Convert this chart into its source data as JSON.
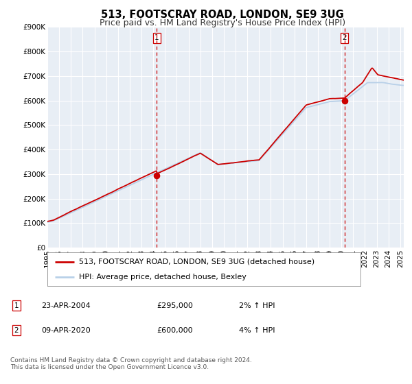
{
  "title": "513, FOOTSCRAY ROAD, LONDON, SE9 3UG",
  "subtitle": "Price paid vs. HM Land Registry's House Price Index (HPI)",
  "ylim": [
    0,
    900000
  ],
  "xlim_start": 1995.0,
  "xlim_end": 2025.3,
  "yticks": [
    0,
    100000,
    200000,
    300000,
    400000,
    500000,
    600000,
    700000,
    800000,
    900000
  ],
  "ytick_labels": [
    "£0",
    "£100K",
    "£200K",
    "£300K",
    "£400K",
    "£500K",
    "£600K",
    "£700K",
    "£800K",
    "£900K"
  ],
  "xticks": [
    1995,
    1996,
    1997,
    1998,
    1999,
    2000,
    2001,
    2002,
    2003,
    2004,
    2005,
    2006,
    2007,
    2008,
    2009,
    2010,
    2011,
    2012,
    2013,
    2014,
    2015,
    2016,
    2017,
    2018,
    2019,
    2020,
    2021,
    2022,
    2023,
    2024,
    2025
  ],
  "hpi_color": "#b8d0e8",
  "price_color": "#cc0000",
  "vline_color": "#cc0000",
  "dot_color": "#cc0000",
  "background_color": "#ffffff",
  "chart_bg_color": "#e8eef5",
  "grid_color": "#ffffff",
  "sale1_x": 2004.31,
  "sale1_y": 295000,
  "sale2_x": 2020.27,
  "sale2_y": 600000,
  "legend_label1": "513, FOOTSCRAY ROAD, LONDON, SE9 3UG (detached house)",
  "legend_label2": "HPI: Average price, detached house, Bexley",
  "annot1_label": "1",
  "annot2_label": "2",
  "table_row1": [
    "1",
    "23-APR-2004",
    "£295,000",
    "2% ↑ HPI"
  ],
  "table_row2": [
    "2",
    "09-APR-2020",
    "£600,000",
    "4% ↑ HPI"
  ],
  "footnote": "Contains HM Land Registry data © Crown copyright and database right 2024.\nThis data is licensed under the Open Government Licence v3.0.",
  "title_fontsize": 10.5,
  "subtitle_fontsize": 9,
  "tick_fontsize": 7.5,
  "legend_fontsize": 8,
  "table_fontsize": 8,
  "footnote_fontsize": 6.5
}
